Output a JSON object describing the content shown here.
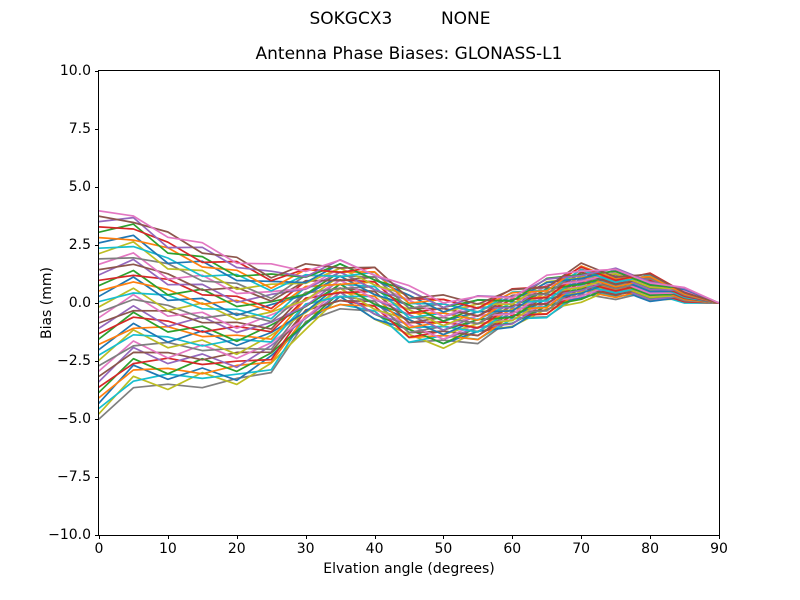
{
  "suptitle": "SOKGCX3         NONE",
  "chart_data": {
    "type": "line",
    "title": "Antenna Phase Biases: GLONASS-L1",
    "xlabel": "Elvation angle (degrees)",
    "ylabel": "Bias (mm)",
    "xlim": [
      0,
      90
    ],
    "ylim": [
      -10,
      10
    ],
    "grid": false,
    "legend": "none",
    "xticks": [
      0,
      10,
      20,
      30,
      40,
      50,
      60,
      70,
      80,
      90
    ],
    "xtick_labels": [
      "0",
      "10",
      "20",
      "30",
      "40",
      "50",
      "60",
      "70",
      "80",
      "90"
    ],
    "yticks": [
      -10,
      -7.5,
      -5,
      -2.5,
      0,
      2.5,
      5,
      7.5,
      10
    ],
    "ytick_labels": [
      "−10.0",
      "−7.5",
      "−5.0",
      "−2.5",
      "0.0",
      "2.5",
      "5.0",
      "7.5",
      "10.0"
    ],
    "colors": [
      "#7f7f7f",
      "#bcbd22",
      "#17becf",
      "#1f77b4",
      "#ff7f0e",
      "#2ca02c",
      "#d62728",
      "#9467bd",
      "#8c564b",
      "#e377c2"
    ],
    "x": [
      0,
      5,
      10,
      15,
      20,
      25,
      30,
      35,
      40,
      45,
      50,
      55,
      60,
      65,
      70,
      75,
      80,
      85,
      90
    ],
    "series": [
      [
        -5.0,
        -3.65,
        -3.5,
        -3.65,
        -3.25,
        -3.0,
        -0.8,
        -0.25,
        -0.35,
        -1.7,
        -1.6,
        -1.75,
        -0.65,
        -0.6,
        0.4,
        0.15,
        0.5,
        0.02,
        0
      ],
      [
        -4.77,
        -3.16,
        -3.73,
        -3.0,
        -3.51,
        -2.59,
        -1.14,
        0.29,
        -0.7,
        -1.35,
        -1.95,
        -1.21,
        -1.01,
        -0.26,
        0.03,
        0.67,
        0.12,
        0.19,
        0
      ],
      [
        -4.54,
        -3.37,
        -3.06,
        -3.25,
        -3.07,
        -2.88,
        -0.57,
        -0.06,
        -0.34,
        -1.69,
        -1.4,
        -1.57,
        -0.68,
        -0.63,
        0.56,
        0.28,
        0.44,
        0.0,
        0
      ],
      [
        -4.31,
        -2.68,
        -3.29,
        -2.8,
        -3.33,
        -2.27,
        -0.91,
        0.28,
        -0.69,
        -1.14,
        -1.75,
        -1.22,
        -1.04,
        -0.09,
        0.22,
        0.62,
        0.07,
        0.26,
        0
      ],
      [
        -4.08,
        -2.89,
        -2.82,
        -3.05,
        -2.69,
        -2.56,
        -0.55,
        -0.07,
        -0.14,
        -1.49,
        -1.4,
        -1.58,
        -0.51,
        -0.46,
        0.53,
        0.24,
        0.59,
        0.07,
        0
      ],
      [
        -3.85,
        -2.4,
        -3.05,
        -2.4,
        -2.95,
        -2.15,
        -0.88,
        0.47,
        -0.48,
        -1.13,
        -1.75,
        -1.04,
        -0.87,
        -0.12,
        0.16,
        0.77,
        0.21,
        0.24,
        0
      ],
      [
        -3.62,
        -2.61,
        -2.38,
        -2.65,
        -2.51,
        -2.44,
        -0.32,
        0.11,
        -0.13,
        -1.48,
        -1.21,
        -1.4,
        -0.54,
        -0.48,
        0.69,
        0.39,
        0.53,
        0.05,
        0
      ],
      [
        -3.39,
        -1.92,
        -2.61,
        -2.2,
        -2.77,
        -1.83,
        -0.66,
        0.46,
        -0.48,
        -0.93,
        -1.56,
        -1.06,
        -0.9,
        0.05,
        0.32,
        0.71,
        0.15,
        0.3,
        0
      ],
      [
        -3.16,
        -2.13,
        -2.14,
        -2.45,
        -2.13,
        -2.12,
        -0.3,
        0.1,
        0.07,
        -1.28,
        -1.21,
        -1.41,
        -0.37,
        -0.31,
        0.66,
        0.33,
        0.68,
        0.12,
        0
      ],
      [
        -2.93,
        -1.64,
        -2.37,
        -1.8,
        -2.39,
        -1.71,
        -0.63,
        0.65,
        -0.27,
        -0.92,
        -1.56,
        -0.87,
        -0.73,
        0.02,
        0.29,
        0.86,
        0.3,
        0.29,
        0
      ],
      [
        -2.7,
        -1.85,
        -1.7,
        -2.05,
        -1.95,
        -2.0,
        -0.07,
        0.29,
        0.08,
        -1.27,
        -1.01,
        -1.23,
        -0.4,
        -0.34,
        0.82,
        0.48,
        0.62,
        0.1,
        0
      ],
      [
        -2.47,
        -1.16,
        -1.93,
        -1.6,
        -2.21,
        -1.39,
        -0.41,
        0.63,
        -0.27,
        -0.72,
        -1.36,
        -0.89,
        -0.76,
        0.2,
        0.45,
        0.8,
        0.24,
        0.35,
        0
      ],
      [
        -2.24,
        -1.37,
        -1.46,
        -1.85,
        -1.57,
        -1.68,
        -0.04,
        0.28,
        0.29,
        -1.06,
        -1.01,
        -1.25,
        -0.23,
        -0.17,
        0.78,
        0.43,
        0.76,
        0.16,
        0
      ],
      [
        -2.01,
        -0.88,
        -1.69,
        -1.2,
        -1.83,
        -1.27,
        -0.38,
        0.82,
        -0.06,
        -0.71,
        -1.36,
        -0.7,
        -0.59,
        0.17,
        0.42,
        0.95,
        0.39,
        0.34,
        0
      ],
      [
        -1.78,
        -1.09,
        -1.02,
        -1.45,
        -1.39,
        -1.56,
        0.18,
        0.47,
        0.29,
        -1.06,
        -0.81,
        -1.06,
        -0.26,
        -0.2,
        0.95,
        0.57,
        0.71,
        0.15,
        0
      ],
      [
        -1.55,
        -0.4,
        -1.25,
        -1.0,
        -1.65,
        -0.95,
        -0.15,
        0.81,
        -0.05,
        -0.5,
        -1.17,
        -0.72,
        -0.62,
        0.34,
        0.58,
        0.9,
        0.33,
        0.4,
        0
      ],
      [
        -1.32,
        -0.61,
        -0.78,
        -1.25,
        -1.01,
        -1.24,
        0.21,
        0.45,
        0.5,
        -0.85,
        -0.82,
        -1.08,
        -0.09,
        -0.03,
        0.91,
        0.52,
        0.85,
        0.21,
        0
      ],
      [
        -1.09,
        -0.12,
        -1.01,
        -0.6,
        -1.27,
        -0.83,
        -0.13,
        1.0,
        0.15,
        -0.5,
        -1.17,
        -0.54,
        -0.45,
        0.31,
        0.54,
        1.04,
        0.47,
        0.38,
        0
      ],
      [
        -0.86,
        -0.33,
        -0.34,
        -0.85,
        -0.83,
        -1.12,
        0.43,
        0.64,
        0.5,
        -0.85,
        -0.62,
        -0.89,
        -0.12,
        -0.05,
        1.08,
        0.66,
        0.79,
        0.2,
        0
      ],
      [
        -0.63,
        0.36,
        -0.57,
        -0.4,
        -1.09,
        -0.51,
        0.1,
        0.98,
        0.16,
        -0.29,
        -0.97,
        -0.55,
        -0.48,
        0.48,
        0.71,
        0.99,
        0.41,
        0.45,
        0
      ],
      [
        -0.4,
        0.15,
        -0.1,
        -0.65,
        -0.45,
        -0.8,
        0.46,
        0.62,
        0.71,
        -0.64,
        -0.63,
        -0.9,
        0.05,
        0.12,
        1.04,
        0.61,
        0.94,
        0.26,
        0
      ],
      [
        -0.17,
        0.64,
        -0.33,
        0.0,
        -0.71,
        -0.39,
        0.12,
        1.17,
        0.36,
        -0.29,
        -0.98,
        -0.37,
        -0.31,
        0.46,
        0.67,
        1.13,
        0.56,
        0.43,
        0
      ],
      [
        0.06,
        0.43,
        0.34,
        -0.25,
        -0.27,
        -0.68,
        0.69,
        0.81,
        0.71,
        -0.64,
        -0.43,
        -0.72,
        0.02,
        0.09,
        1.2,
        0.76,
        0.88,
        0.24,
        0
      ],
      [
        0.29,
        1.12,
        0.11,
        0.2,
        -0.53,
        -0.07,
        0.35,
        1.15,
        0.36,
        -0.09,
        -0.78,
        -0.38,
        -0.34,
        0.63,
        0.84,
        1.08,
        0.5,
        0.5,
        0
      ],
      [
        0.52,
        0.91,
        0.58,
        -0.05,
        0.11,
        -0.36,
        0.71,
        0.8,
        0.91,
        -0.44,
        -0.43,
        -0.74,
        0.19,
        0.26,
        1.17,
        0.7,
        1.02,
        0.31,
        0
      ],
      [
        0.75,
        1.4,
        0.35,
        0.6,
        -0.15,
        0.05,
        0.38,
        1.34,
        0.57,
        -0.08,
        -0.78,
        -0.19,
        -0.17,
        0.6,
        0.8,
        1.23,
        0.65,
        0.48,
        0
      ],
      [
        0.98,
        1.19,
        1.02,
        0.35,
        0.29,
        -0.24,
        0.94,
        0.99,
        0.92,
        -0.43,
        -0.23,
        -0.55,
        0.16,
        0.23,
        1.33,
        0.85,
        0.97,
        0.29,
        0
      ],
      [
        1.21,
        1.88,
        0.79,
        0.8,
        0.03,
        0.37,
        0.6,
        1.33,
        0.57,
        0.12,
        -0.58,
        -0.21,
        -0.2,
        0.77,
        0.96,
        1.17,
        0.59,
        0.54,
        0
      ],
      [
        1.44,
        1.67,
        1.26,
        0.55,
        0.67,
        0.08,
        0.96,
        0.97,
        1.12,
        -0.23,
        -0.24,
        -0.57,
        0.33,
        0.41,
        1.3,
        0.79,
        1.11,
        0.36,
        0
      ],
      [
        1.67,
        2.16,
        1.03,
        1.2,
        0.41,
        0.49,
        0.63,
        1.51,
        0.78,
        0.13,
        -0.59,
        -0.02,
        -0.03,
        0.74,
        0.93,
        1.32,
        0.73,
        0.53,
        0
      ],
      [
        1.9,
        1.95,
        1.7,
        0.95,
        0.85,
        0.2,
        1.19,
        1.16,
        1.13,
        -0.22,
        -0.04,
        -0.38,
        0.3,
        0.38,
        1.46,
        0.94,
        1.05,
        0.34,
        0
      ],
      [
        2.13,
        2.64,
        1.47,
        1.4,
        0.59,
        0.81,
        0.85,
        1.5,
        0.78,
        0.33,
        -0.39,
        -0.04,
        -0.06,
        0.92,
        1.09,
        1.26,
        0.68,
        0.59,
        0
      ],
      [
        2.36,
        2.43,
        1.94,
        1.15,
        1.23,
        0.52,
        1.22,
        1.14,
        1.33,
        -0.02,
        -0.04,
        -0.4,
        0.47,
        0.55,
        1.42,
        0.89,
        1.2,
        0.4,
        0
      ],
      [
        2.59,
        2.92,
        1.71,
        1.8,
        0.97,
        0.93,
        0.88,
        1.69,
        0.99,
        0.34,
        -0.39,
        0.14,
        0.11,
        0.88,
        1.06,
        1.41,
        0.82,
        0.58,
        0
      ],
      [
        2.82,
        2.71,
        2.38,
        1.55,
        1.41,
        0.64,
        1.44,
        1.33,
        1.34,
        -0.01,
        0.16,
        -0.22,
        0.44,
        0.52,
        1.59,
        1.03,
        1.14,
        0.39,
        0
      ],
      [
        3.05,
        3.4,
        2.15,
        2.0,
        1.15,
        1.25,
        1.11,
        1.68,
        0.99,
        0.54,
        -0.19,
        0.13,
        0.08,
        1.06,
        1.22,
        1.36,
        0.77,
        0.64,
        0
      ],
      [
        3.28,
        3.19,
        2.62,
        1.75,
        1.79,
        0.96,
        1.47,
        1.32,
        1.54,
        0.19,
        0.15,
        -0.23,
        0.61,
        0.7,
        1.55,
        0.98,
        1.29,
        0.45,
        0
      ],
      [
        3.51,
        3.68,
        2.39,
        2.4,
        1.53,
        1.37,
        1.13,
        1.86,
        1.19,
        0.54,
        -0.2,
        0.31,
        0.25,
        1.03,
        1.18,
        1.5,
        0.91,
        0.62,
        0
      ],
      [
        3.74,
        3.47,
        3.06,
        2.15,
        1.97,
        1.08,
        1.69,
        1.51,
        1.54,
        0.19,
        0.35,
        -0.05,
        0.58,
        0.67,
        1.72,
        1.12,
        1.24,
        0.44,
        0
      ],
      [
        3.97,
        3.75,
        2.83,
        2.6,
        1.71,
        1.69,
        1.36,
        1.85,
        1.2,
        0.75,
        0.0,
        0.29,
        0.22,
        1.2,
        1.37,
        1.45,
        0.86,
        0.67,
        0
      ]
    ]
  }
}
